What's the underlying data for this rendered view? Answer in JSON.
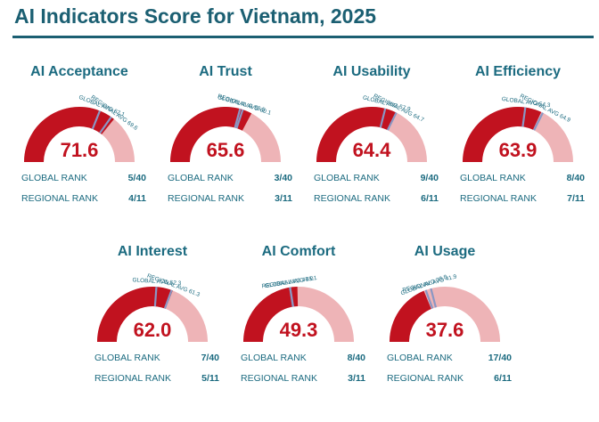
{
  "title": "AI Indicators Score for Vietnam, 2025",
  "colors": {
    "score_fill": "#c1121f",
    "remainder_fill": "#eeb4b7",
    "global_marker": "#8a97c4",
    "regional_marker": "#8a97c4",
    "text": "#1c6b80"
  },
  "labels": {
    "global_avg": "GLOBAL AVG",
    "regional_avg": "REGIONAL AVG",
    "global_rank": "GLOBAL RANK",
    "regional_rank": "REGIONAL RANK"
  },
  "chart_data": [
    {
      "type": "gauge",
      "title": "AI Acceptance",
      "value": 71.6,
      "display": "71.6",
      "range": [
        0,
        100
      ],
      "global_avg": 62.1,
      "global_avg_text": "62.1",
      "regional_avg": 69.6,
      "regional_avg_text": "69.6",
      "global_rank": "5/40",
      "regional_rank": "4/11"
    },
    {
      "type": "gauge",
      "title": "AI Trust",
      "value": 65.6,
      "display": "65.6",
      "range": [
        0,
        100
      ],
      "global_avg": 58.5,
      "global_avg_text": "58.5",
      "regional_avg": 60.1,
      "regional_avg_text": "60.1",
      "global_rank": "3/40",
      "regional_rank": "3/11"
    },
    {
      "type": "gauge",
      "title": "AI Usability",
      "value": 64.4,
      "display": "64.4",
      "range": [
        0,
        100
      ],
      "global_avg": 57.9,
      "global_avg_text": "57.9",
      "regional_avg": 64.7,
      "regional_avg_text": "64.7",
      "global_rank": "9/40",
      "regional_rank": "6/11"
    },
    {
      "type": "gauge",
      "title": "AI Efficiency",
      "value": 63.9,
      "display": "63.9",
      "range": [
        0,
        100
      ],
      "global_avg": 54.3,
      "global_avg_text": "54.3",
      "regional_avg": 64.9,
      "regional_avg_text": "64.9",
      "global_rank": "8/40",
      "regional_rank": "7/11"
    },
    {
      "type": "gauge",
      "title": "AI Interest",
      "value": 62.0,
      "display": "62.0",
      "range": [
        0,
        100
      ],
      "global_avg": 52.3,
      "global_avg_text": "52.3",
      "regional_avg": 61.3,
      "regional_avg_text": "61.3",
      "global_rank": "7/40",
      "regional_rank": "5/11"
    },
    {
      "type": "gauge",
      "title": "AI Comfort",
      "value": 49.3,
      "display": "49.3",
      "range": [
        0,
        100
      ],
      "global_avg": 45.0,
      "global_avg_text": "45.0",
      "regional_avg": 45.1,
      "regional_avg_text": "45.1",
      "global_rank": "8/40",
      "regional_rank": "3/11"
    },
    {
      "type": "gauge",
      "title": "AI Usage",
      "value": 37.6,
      "display": "37.6",
      "range": [
        0,
        100
      ],
      "global_avg": 38.8,
      "global_avg_text": "38.8",
      "regional_avg": 41.9,
      "regional_avg_text": "41.9",
      "global_rank": "17/40",
      "regional_rank": "6/11"
    }
  ]
}
